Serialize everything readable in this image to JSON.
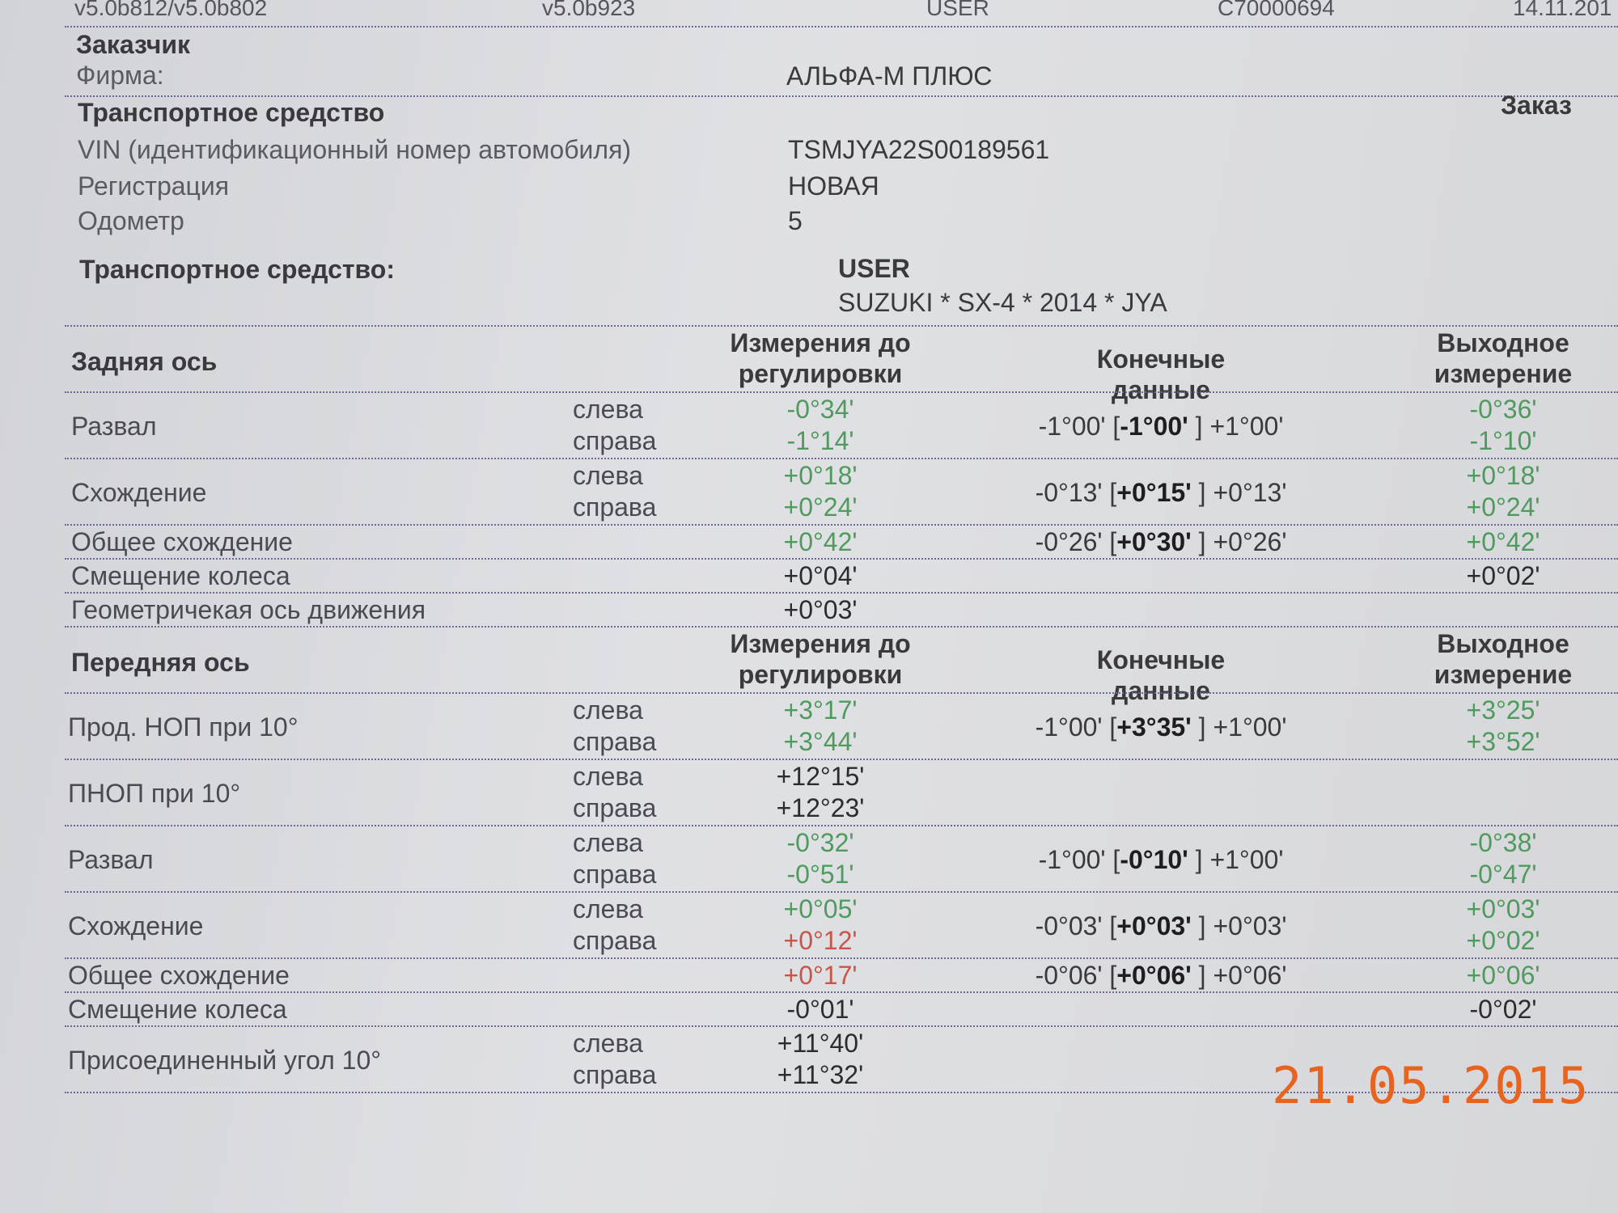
{
  "header": {
    "cells": [
      "v5.0b812/v5.0b802",
      "v5.0b923",
      "USER",
      "C70000694",
      "14.11.201"
    ]
  },
  "customer": {
    "title": "Заказчик",
    "firm_label": "Фирма:",
    "firm": "АЛЬФА-М ПЛЮС"
  },
  "vehicle": {
    "title": "Транспортное средство",
    "order": "Заказ",
    "rows": [
      [
        "VIN (идентификационный номер автомобиля)",
        "TSMJYA22S00189561"
      ],
      [
        "Регистрация",
        "НОВАЯ"
      ],
      [
        "Одометр",
        "5"
      ]
    ]
  },
  "model": {
    "label": "Транспортное средство:",
    "user": "USER",
    "name": "SUZUKI * SX-4 * 2014 * JYA"
  },
  "sections": [
    {
      "header": [
        "Задняя ось",
        "Измерения до регулировки",
        "Конечные данные",
        "Выходное измерение"
      ],
      "rows": [
        {
          "name": "Развал",
          "sides": [
            "слева",
            "справа"
          ],
          "before": [
            {
              "text": "-0°34'",
              "color": "#4f9a5c"
            },
            {
              "text": "-1°14'",
              "color": "#4f9a5c"
            }
          ],
          "spec": {
            "low": "-1°00' [",
            "nominal": "-1°00'",
            "high": " ] +1°00'"
          },
          "after": [
            {
              "text": "-0°36'",
              "color": "#4f9a5c"
            },
            {
              "text": "-1°10'",
              "color": "#4f9a5c"
            }
          ]
        },
        {
          "name": "Схождение",
          "sides": [
            "слева",
            "справа"
          ],
          "before": [
            {
              "text": "+0°18'",
              "color": "#4f9a5c"
            },
            {
              "text": "+0°24'",
              "color": "#4f9a5c"
            }
          ],
          "spec": {
            "low": "-0°13' [",
            "nominal": "+0°15'",
            "high": " ] +0°13'"
          },
          "after": [
            {
              "text": "+0°18'",
              "color": "#4f9a5c"
            },
            {
              "text": "+0°24'",
              "color": "#4f9a5c"
            }
          ]
        },
        {
          "name": "Общее схождение",
          "before": [
            {
              "text": "+0°42'",
              "color": "#4f9a5c"
            }
          ],
          "spec": {
            "low": "-0°26' [",
            "nominal": "+0°30'",
            "high": " ] +0°26'"
          },
          "after": [
            {
              "text": "+0°42'",
              "color": "#4f9a5c"
            }
          ]
        },
        {
          "name": "Смещение колеса",
          "before": [
            {
              "text": "+0°04'",
              "color": "#2c2c30"
            }
          ],
          "after": [
            {
              "text": "+0°02'",
              "color": "#2c2c30"
            }
          ]
        },
        {
          "name": "Геометричекая ось движения",
          "before": [
            {
              "text": "+0°03'",
              "color": "#2c2c30"
            }
          ]
        }
      ]
    },
    {
      "header": [
        "Передняя ось",
        "Измерения до регулировки",
        "Конечные данные",
        "Выходное измерение"
      ],
      "rows": [
        {
          "name": "Прод. НОП при 10°",
          "sides": [
            "слева",
            "справа"
          ],
          "before": [
            {
              "text": "+3°17'",
              "color": "#4f9a5c"
            },
            {
              "text": "+3°44'",
              "color": "#4f9a5c"
            }
          ],
          "spec": {
            "low": "-1°00' [",
            "nominal": "+3°35'",
            "high": " ] +1°00'"
          },
          "after": [
            {
              "text": "+3°25'",
              "color": "#4f9a5c"
            },
            {
              "text": "+3°52'",
              "color": "#4f9a5c"
            }
          ]
        },
        {
          "name": "ПНОП при 10°",
          "sides": [
            "слева",
            "справа"
          ],
          "before": [
            {
              "text": "+12°15'",
              "color": "#2c2c30"
            },
            {
              "text": "+12°23'",
              "color": "#2c2c30"
            }
          ]
        },
        {
          "name": "Развал",
          "sides": [
            "слева",
            "справа"
          ],
          "before": [
            {
              "text": "-0°32'",
              "color": "#4f9a5c"
            },
            {
              "text": "-0°51'",
              "color": "#4f9a5c"
            }
          ],
          "spec": {
            "low": "-1°00' [",
            "nominal": "-0°10'",
            "high": " ] +1°00'"
          },
          "after": [
            {
              "text": "-0°38'",
              "color": "#4f9a5c"
            },
            {
              "text": "-0°47'",
              "color": "#4f9a5c"
            }
          ]
        },
        {
          "name": "Схождение",
          "sides": [
            "слева",
            "справа"
          ],
          "before": [
            {
              "text": "+0°05'",
              "color": "#4f9a5c"
            },
            {
              "text": "+0°12'",
              "color": "#c8554a"
            }
          ],
          "spec": {
            "low": "-0°03' [",
            "nominal": "+0°03'",
            "high": " ] +0°03'"
          },
          "after": [
            {
              "text": "+0°03'",
              "color": "#4f9a5c"
            },
            {
              "text": "+0°02'",
              "color": "#4f9a5c"
            }
          ]
        },
        {
          "name": "Общее схождение",
          "before": [
            {
              "text": "+0°17'",
              "color": "#c8554a"
            }
          ],
          "spec": {
            "low": "-0°06' [",
            "nominal": "+0°06'",
            "high": " ] +0°06'"
          },
          "after": [
            {
              "text": "+0°06'",
              "color": "#4f9a5c"
            }
          ]
        },
        {
          "name": "Смещение колеса",
          "before": [
            {
              "text": "-0°01'",
              "color": "#2c2c30"
            }
          ],
          "after": [
            {
              "text": "-0°02'",
              "color": "#2c2c30"
            }
          ]
        },
        {
          "name": "Присоединенный угол 10°",
          "sides": [
            "слева",
            "справа"
          ],
          "before": [
            {
              "text": "+11°40'",
              "color": "#2c2c30"
            },
            {
              "text": "+11°32'",
              "color": "#2c2c30"
            }
          ]
        }
      ]
    }
  ],
  "date_stamp": "21.05.2015"
}
